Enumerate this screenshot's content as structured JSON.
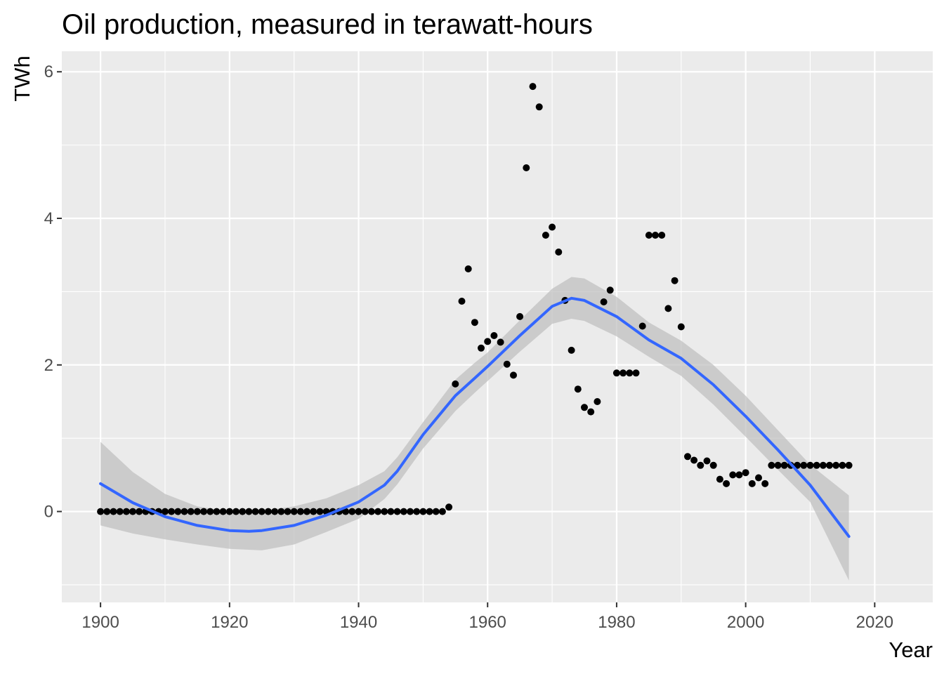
{
  "chart_data": {
    "type": "scatter",
    "title": "Oil production, measured in terawatt-hours",
    "xlabel": "Year",
    "ylabel": "TWh",
    "xlim": [
      1894,
      2029
    ],
    "ylim": [
      -1.24,
      6.28
    ],
    "x_ticks": [
      1900,
      1920,
      1940,
      1960,
      1980,
      2000,
      2020
    ],
    "y_ticks": [
      0,
      2,
      4,
      6
    ],
    "grid": true,
    "legend": "none",
    "colors": {
      "panel": "#EBEBEB",
      "grid": "#FFFFFF",
      "points": "#000000",
      "smooth_line": "#3366FF",
      "ribbon": "#BDBDBD"
    },
    "points": {
      "x": [
        1900,
        1901,
        1902,
        1903,
        1904,
        1905,
        1906,
        1907,
        1908,
        1909,
        1910,
        1911,
        1912,
        1913,
        1914,
        1915,
        1916,
        1917,
        1918,
        1919,
        1920,
        1921,
        1922,
        1923,
        1924,
        1925,
        1926,
        1927,
        1928,
        1929,
        1930,
        1931,
        1932,
        1933,
        1934,
        1935,
        1936,
        1937,
        1938,
        1939,
        1940,
        1941,
        1942,
        1943,
        1944,
        1945,
        1946,
        1947,
        1948,
        1949,
        1950,
        1951,
        1952,
        1953,
        1954,
        1955,
        1956,
        1957,
        1958,
        1959,
        1960,
        1961,
        1962,
        1963,
        1964,
        1965,
        1966,
        1967,
        1968,
        1969,
        1970,
        1971,
        1972,
        1973,
        1974,
        1975,
        1976,
        1977,
        1978,
        1979,
        1980,
        1981,
        1982,
        1983,
        1984,
        1985,
        1986,
        1987,
        1988,
        1989,
        1990,
        1991,
        1992,
        1993,
        1994,
        1995,
        1996,
        1997,
        1998,
        1999,
        2000,
        2001,
        2002,
        2003,
        2004,
        2005,
        2006,
        2007,
        2008,
        2009,
        2010,
        2011,
        2012,
        2013,
        2014,
        2015,
        2016
      ],
      "y": [
        0,
        0,
        0,
        0,
        0,
        0,
        0,
        0,
        0,
        0,
        0,
        0,
        0,
        0,
        0,
        0,
        0,
        0,
        0,
        0,
        0,
        0,
        0,
        0,
        0,
        0,
        0,
        0,
        0,
        0,
        0,
        0,
        0,
        0,
        0,
        0,
        0,
        0,
        0,
        0,
        0,
        0,
        0,
        0,
        0,
        0,
        0,
        0,
        0,
        0,
        0,
        0,
        0,
        0,
        0.06,
        1.74,
        2.87,
        3.31,
        2.58,
        2.23,
        2.32,
        2.4,
        2.31,
        2.01,
        1.86,
        2.66,
        4.69,
        5.8,
        5.52,
        3.77,
        3.88,
        3.54,
        2.88,
        2.2,
        1.67,
        1.42,
        1.36,
        1.5,
        2.86,
        3.02,
        1.89,
        1.89,
        1.89,
        1.89,
        2.53,
        3.77,
        3.77,
        3.77,
        2.77,
        3.15,
        2.52,
        0.75,
        0.7,
        0.63,
        0.69,
        0.63,
        0.44,
        0.38,
        0.5,
        0.5,
        0.53,
        0.38,
        0.46,
        0.38,
        0.63,
        0.63,
        0.63,
        0.63,
        0.63,
        0.63,
        0.63,
        0.63,
        0.63,
        0.63,
        0.63,
        0.63,
        0.63
      ]
    },
    "smooth": {
      "x": [
        1900,
        1905,
        1910,
        1915,
        1920,
        1923,
        1925,
        1930,
        1935,
        1940,
        1944,
        1946,
        1950,
        1955,
        1958,
        1960,
        1965,
        1970,
        1973,
        1975,
        1980,
        1985,
        1990,
        1995,
        2000,
        2005,
        2010,
        2016
      ],
      "y": [
        0.38,
        0.12,
        -0.07,
        -0.19,
        -0.26,
        -0.27,
        -0.26,
        -0.19,
        -0.05,
        0.13,
        0.36,
        0.55,
        1.05,
        1.58,
        1.82,
        1.98,
        2.4,
        2.8,
        2.91,
        2.88,
        2.66,
        2.34,
        2.09,
        1.73,
        1.3,
        0.84,
        0.36,
        -0.34
      ]
    },
    "ribbon": {
      "x": [
        1900,
        1905,
        1910,
        1915,
        1920,
        1925,
        1930,
        1935,
        1940,
        1944,
        1946,
        1950,
        1955,
        1958,
        1960,
        1965,
        1970,
        1973,
        1975,
        1980,
        1985,
        1990,
        1995,
        2000,
        2005,
        2010,
        2016
      ],
      "lower": [
        -0.19,
        -0.3,
        -0.38,
        -0.45,
        -0.51,
        -0.53,
        -0.45,
        -0.28,
        -0.1,
        0.17,
        0.37,
        0.86,
        1.37,
        1.62,
        1.78,
        2.18,
        2.56,
        2.63,
        2.6,
        2.39,
        2.11,
        1.85,
        1.46,
        1.02,
        0.57,
        0.13,
        -0.94
      ],
      "upper": [
        0.95,
        0.54,
        0.24,
        0.07,
        0.0,
        0.01,
        0.07,
        0.18,
        0.36,
        0.55,
        0.74,
        1.22,
        1.8,
        2.03,
        2.17,
        2.61,
        3.04,
        3.2,
        3.18,
        2.93,
        2.58,
        2.33,
        2.0,
        1.58,
        1.11,
        0.64,
        0.22
      ]
    }
  }
}
